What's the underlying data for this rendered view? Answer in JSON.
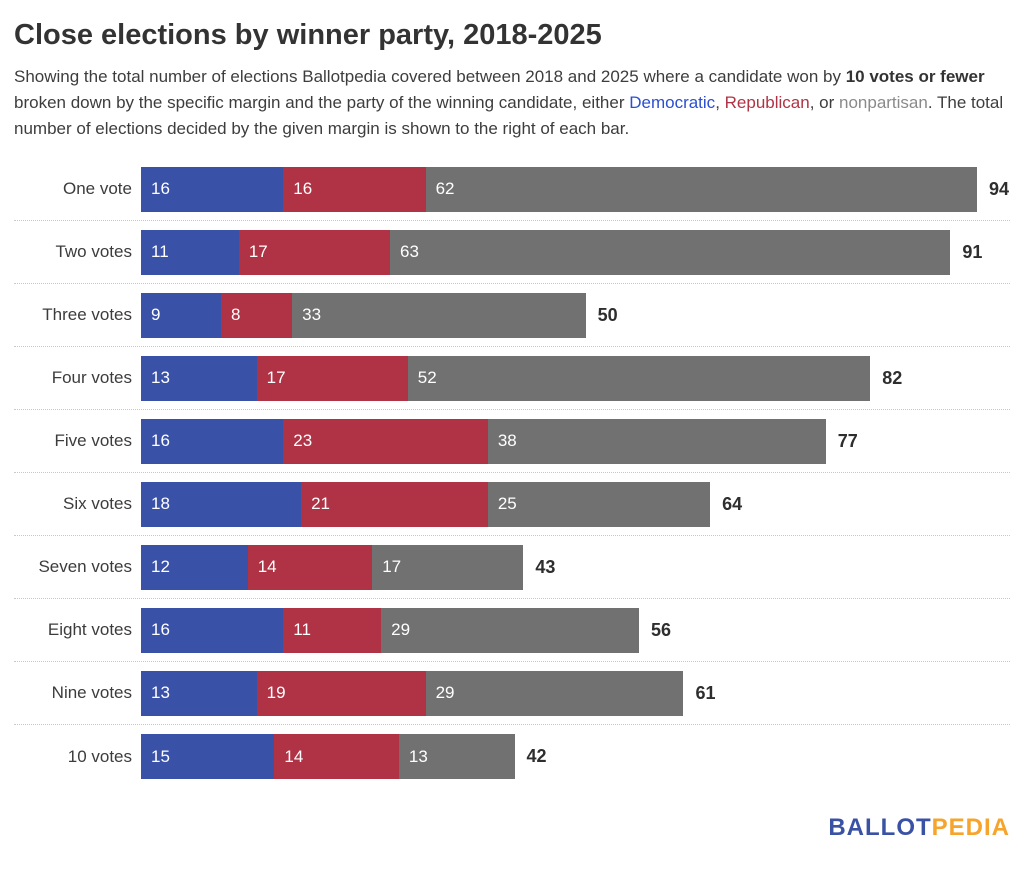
{
  "title": "Close elections by winner party, 2018-2025",
  "subtitle": {
    "part1": "Showing the total number of elections Ballotpedia covered between 2018 and 2025 where a candidate won by ",
    "bold_phrase": "10 votes or fewer",
    "part2": " broken down by the specific margin and the party of the winning candidate, either ",
    "democratic_label": "Democratic",
    "sep1": ", ",
    "republican_label": "Republican",
    "part3": ", or ",
    "nonpartisan_label": "nonpartisan",
    "part4": ". The total number of elections decided by the given margin is shown to the right of each bar."
  },
  "colors": {
    "democratic_bar": "#3a51a8",
    "republican_bar": "#b03345",
    "nonpartisan_bar": "#717171",
    "democratic_text": "#2b4fd0",
    "republican_text": "#b03345",
    "nonpartisan_text": "#8a8a8a",
    "logo_blue": "#3a52a4",
    "logo_orange": "#f6a42c"
  },
  "chart_data": {
    "type": "bar",
    "orientation": "horizontal",
    "stacked": true,
    "title": "Close elections by winner party, 2018-2025",
    "categories": [
      "One vote",
      "Two votes",
      "Three votes",
      "Four votes",
      "Five votes",
      "Six votes",
      "Seven votes",
      "Eight votes",
      "Nine votes",
      "10 votes"
    ],
    "series": [
      {
        "name": "Democratic",
        "color": "#3a51a8",
        "values": [
          16,
          11,
          9,
          13,
          16,
          18,
          12,
          16,
          13,
          15
        ]
      },
      {
        "name": "Republican",
        "color": "#b03345",
        "values": [
          16,
          17,
          8,
          17,
          23,
          21,
          14,
          11,
          19,
          14
        ]
      },
      {
        "name": "Nonpartisan",
        "color": "#717171",
        "values": [
          62,
          63,
          33,
          52,
          38,
          25,
          17,
          29,
          29,
          13
        ]
      }
    ],
    "totals": [
      94,
      91,
      50,
      82,
      77,
      64,
      43,
      56,
      61,
      42
    ],
    "xlim": [
      0,
      94
    ],
    "grid": false,
    "legend": "none",
    "value_labels": "inside-left",
    "total_labels": "right-of-bar"
  },
  "footer": {
    "logo_part1": "BALLOT",
    "logo_part2": "PEDIA"
  }
}
